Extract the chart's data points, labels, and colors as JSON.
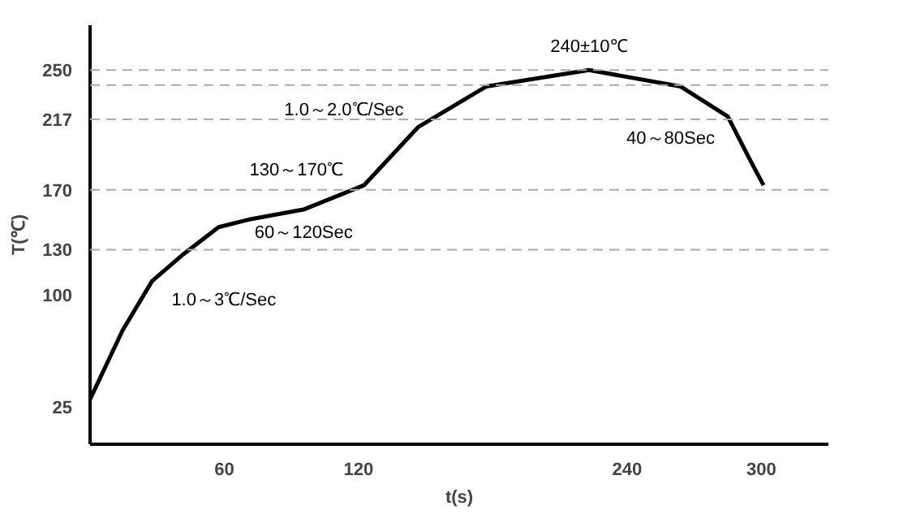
{
  "chart_data": {
    "type": "line",
    "xlabel": "t(s)",
    "ylabel": "T(℃)",
    "x": [
      0,
      14.5,
      27.7,
      40.9,
      57.4,
      70.6,
      95.8,
      122.4,
      146.7,
      177,
      223,
      264,
      285,
      296,
      301
    ],
    "series": [
      {
        "color": "#000000",
        "values": [
          30,
          76,
          109,
          126,
          145,
          150,
          157,
          173,
          212,
          239,
          250,
          239,
          219,
          187,
          173
        ]
      }
    ],
    "xlim": [
      0,
      330
    ],
    "xticks": [
      60,
      120,
      240,
      300
    ],
    "ylim": [
      0,
      280
    ],
    "yticks": [
      25,
      100,
      130,
      170,
      217,
      250
    ],
    "grid": false,
    "marker": "none",
    "line_style": "solid",
    "ref_lines": [
      {
        "axis": "y",
        "value": 250,
        "color": "#aaaaaa",
        "line_style": "dashed"
      },
      {
        "axis": "y",
        "value": 240,
        "color": "#aaaaaa",
        "line_style": "dashed"
      },
      {
        "axis": "y",
        "value": 217,
        "color": "#aaaaaa",
        "line_style": "dashed"
      },
      {
        "axis": "y",
        "value": 170,
        "color": "#aaaaaa",
        "line_style": "dashed"
      },
      {
        "axis": "y",
        "value": 130,
        "color": "#aaaaaa",
        "line_style": "dashed"
      }
    ],
    "annotations": [
      {
        "text": "1.0～2.0℃/Sec",
        "x": 146.7,
        "y": 212
      },
      {
        "text": "240±10℃",
        "x": 223,
        "y": 250
      },
      {
        "text": "130～170℃",
        "x": 95.8,
        "y": 157
      },
      {
        "text": "60～120Sec",
        "x": 70.6,
        "y": 150
      },
      {
        "text": "40～80Sec",
        "x": 285,
        "y": 219
      },
      {
        "text": "1.0～3℃/Sec",
        "x": 27.7,
        "y": 109
      }
    ]
  }
}
